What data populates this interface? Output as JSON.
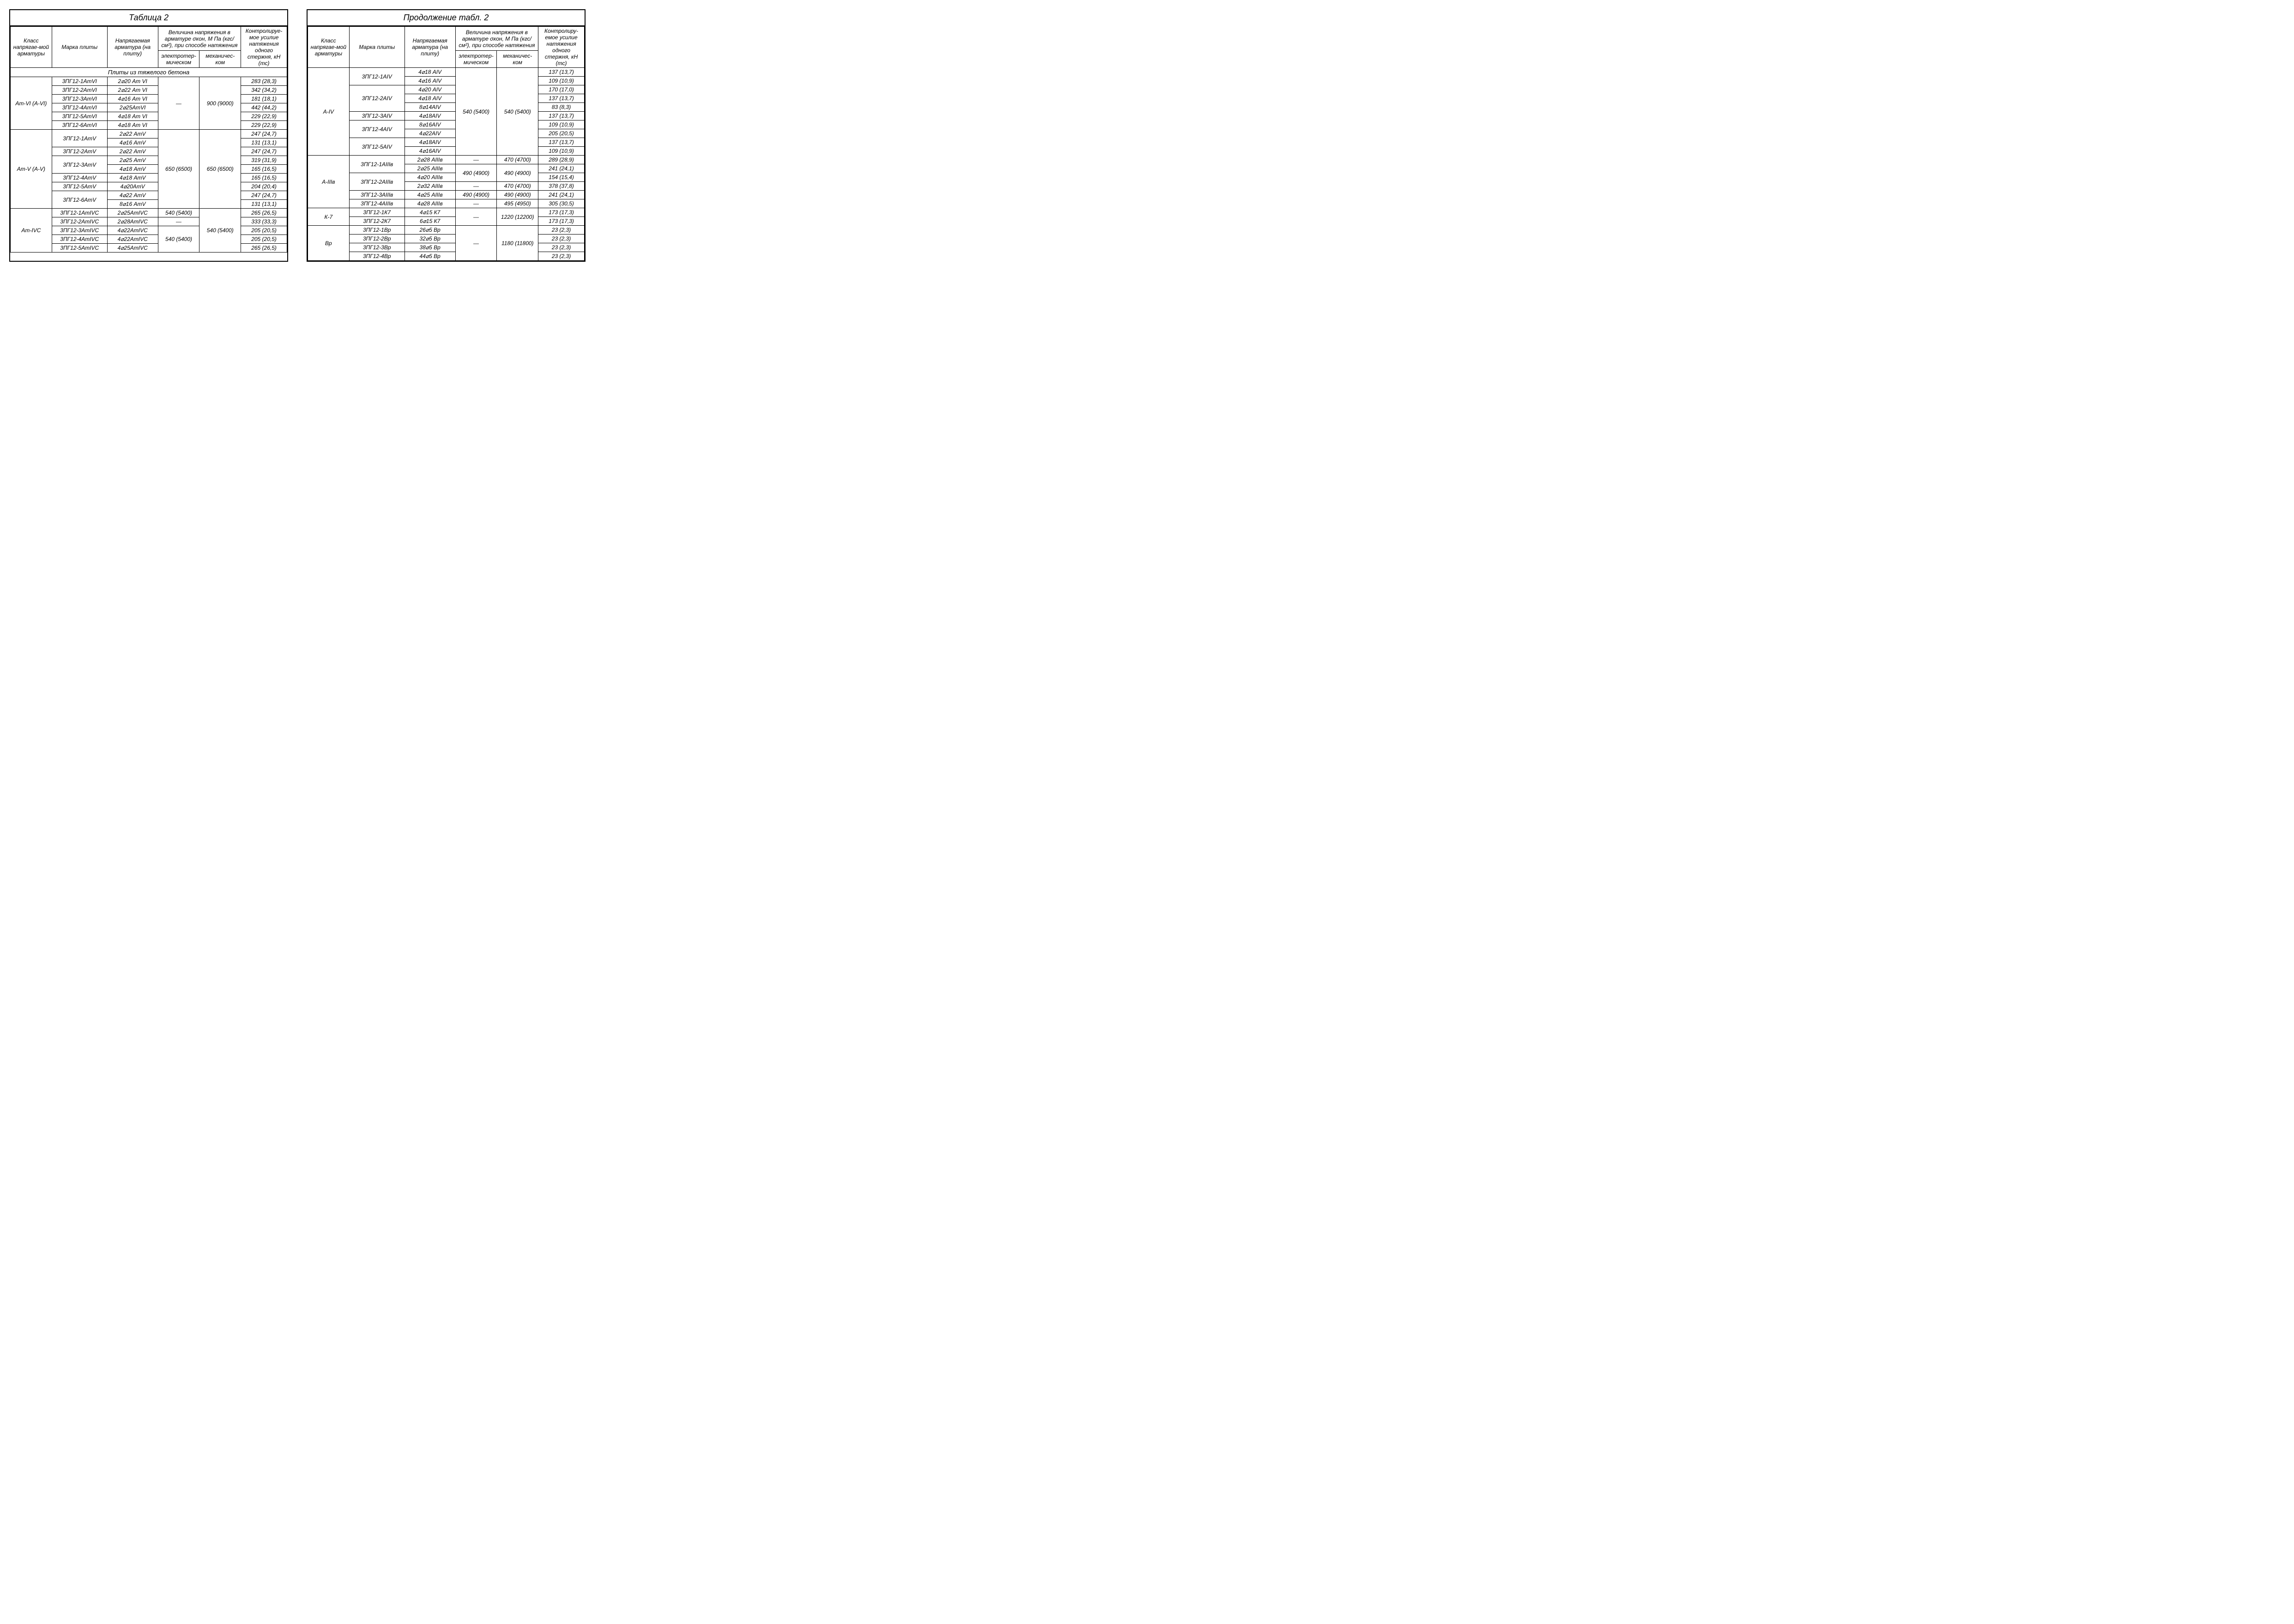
{
  "left": {
    "title": "Таблица 2",
    "head": {
      "a": "Класс напрягае-мой арматуры",
      "b": "Марка плиты",
      "c": "Напрягаемая арматура (на плиту)",
      "d_top": "Величина напряжения в арматуре σкон, М Па (кгс/см²), при способе натяжения",
      "d1": "электротер-мическом",
      "d2": "механичес-ком",
      "e": "Контролируе-мое усилие натяжения одного стержня, кН (тс)"
    },
    "section": "Плиты из тяжелого бетона",
    "groups": [
      {
        "cls": "Ат-VI (А-VI)",
        "d1": "—",
        "d2": "900 (9000)",
        "rows": [
          {
            "b": "3ПГ12-1АтVI",
            "c": "2⌀20 Ат VI",
            "e": "283 (28,3)"
          },
          {
            "b": "3ПГ12-2АтVI",
            "c": "2⌀22 Ат VI",
            "e": "342 (34,2)"
          },
          {
            "b": "3ПГ12-3АтVI",
            "c": "4⌀16 Ат VI",
            "e": "181 (18,1)"
          },
          {
            "b": "3ПГ12-4АтVI",
            "c": "2⌀25АтVI",
            "e": "442 (44,2)"
          },
          {
            "b": "3ПГ12-5АтVI",
            "c": "4⌀18 Ат VI",
            "e": "229 (22,9)"
          },
          {
            "b": "3ПГ12-6АтVI",
            "c": "4⌀18 Ат VI",
            "e": "229 (22,9)"
          }
        ]
      },
      {
        "cls": "Ат-V (А-V)",
        "d1": "650 (6500)",
        "d2": "650 (6500)",
        "rows": [
          {
            "b": "3ПГ12-1АтV",
            "c": "2⌀22 АтV",
            "e": "247 (24,7)",
            "span": 2
          },
          {
            "b": "",
            "c": "4⌀16 АтV",
            "e": "131 (13,1)"
          },
          {
            "b": "3ПГ12-2АтV",
            "c": "2⌀22 АтV",
            "e": "247 (24,7)"
          },
          {
            "b": "3ПГ12-3АтV",
            "c": "2⌀25 АтV",
            "e": "319 (31,9)",
            "span": 2
          },
          {
            "b": "",
            "c": "4⌀18 АтV",
            "e": "165 (16,5)"
          },
          {
            "b": "3ПГ12-4АтV",
            "c": "4⌀18 АтV",
            "e": "165 (16,5)"
          },
          {
            "b": "3ПГ12-5АтV",
            "c": "4⌀20АтV",
            "e": "204 (20,4)"
          },
          {
            "b": "3ПГ12-6АтV",
            "c": "4⌀22 АтV",
            "e": "247 (24,7)",
            "span": 2
          },
          {
            "b": "",
            "c": "8⌀16 АтV",
            "e": "131 (13,1)"
          }
        ]
      },
      {
        "cls": "Ат-IVС",
        "d2": "540 (5400)",
        "rows": [
          {
            "b": "3ПГ12-1АтIVС",
            "c": "2⌀25АтIVС",
            "d1": "540 (5400)",
            "e": "265 (26,5)"
          },
          {
            "b": "3ПГ12-2АтIVС",
            "c": "2⌀28АтIVС",
            "d1": "—",
            "e": "333 (33,3)"
          },
          {
            "b": "3ПГ12-3АтIVС",
            "c": "4⌀22АтIVС",
            "d1": "540 (5400)",
            "d1span": 3,
            "e": "205 (20,5)"
          },
          {
            "b": "3ПГ12-4АтIVС",
            "c": "4⌀22АтIVС",
            "e": "205 (20,5)"
          },
          {
            "b": "3ПГ12-5АтIVС",
            "c": "4⌀25АтIVС",
            "e": "265 (26,5)"
          }
        ]
      }
    ]
  },
  "right": {
    "title": "Продолжение табл. 2",
    "head": {
      "a": "Класс напрягае-мой арматуры",
      "b": "Марка плиты",
      "c": "Напрягаемая арматура (на плиту)",
      "d_top": "Величина напряжения в арматуре σкон, М Па (кгс/см²), при способе натяжения",
      "d1": "электротер-мическом",
      "d2": "механичес-ком",
      "e": "Контролиру-емое усилие натяжения одного стержня, кН (тс)"
    },
    "groups": [
      {
        "cls": "А-IV",
        "d1": "540 (5400)",
        "d2": "540 (5400)",
        "rows": [
          {
            "b": "3ПГ12-1АIV",
            "c": "4⌀18 АIV",
            "e": "137 (13,7)",
            "span": 2
          },
          {
            "b": "",
            "c": "4⌀16 АIV",
            "e": "109 (10,9)"
          },
          {
            "b": "3ПГ12-2АIV",
            "c": "4⌀20 АIV",
            "e": "170 (17,0)",
            "span": 3
          },
          {
            "b": "",
            "c": "4⌀18 АIV",
            "e": "137 (13,7)"
          },
          {
            "b": "",
            "c": "8⌀14АIV",
            "e": "83 (8,3)"
          },
          {
            "b": "3ПГ12-3АIV",
            "c": "4⌀18АIV",
            "e": "137 (13,7)"
          },
          {
            "b": "3ПГ12-4АIV",
            "c": "8⌀16АIV",
            "e": "109 (10,9)",
            "span": 2
          },
          {
            "b": "",
            "c": "4⌀22АIV",
            "e": "205 (20,5)"
          },
          {
            "b": "3ПГ12-5АIV",
            "c": "4⌀18АIV",
            "e": "137 (13,7)",
            "span": 2
          },
          {
            "b": "",
            "c": "4⌀16АIV",
            "e": "109 (10,9)"
          }
        ]
      },
      {
        "cls": "А-IIIв",
        "rows": [
          {
            "b": "3ПГ12-1АIIIв",
            "c": "2⌀28 АIIIв",
            "d1": "—",
            "d2": "470 (4700)",
            "e": "289 (28,9)",
            "span": 2
          },
          {
            "b": "",
            "c": "2⌀25 АIIIв",
            "d1": "490 (4900)",
            "d1span": 2,
            "d2": "490 (4900)",
            "d2span": 2,
            "e": "241 (24,1)"
          },
          {
            "b": "3ПГ12-2АIIIв",
            "c": "4⌀20 АIIIв",
            "e": "154 (15,4)",
            "span": 2
          },
          {
            "b": "",
            "c": "2⌀32 АIIIв",
            "d1": "—",
            "d2": "470 (4700)",
            "e": "378 (37,8)"
          },
          {
            "b": "3ПГ12-3АIIIв",
            "c": "4⌀25 АIIIв",
            "d1": "490 (4900)",
            "d2": "490 (4900)",
            "e": "241 (24,1)"
          },
          {
            "b": "3ПГ12-4АIIIв",
            "c": "4⌀28 АIIIв",
            "d1": "—",
            "d2": "495 (4950)",
            "e": "305 (30,5)"
          }
        ]
      },
      {
        "cls": "К-7",
        "d1": "—",
        "d2": "1220 (12200)",
        "rows": [
          {
            "b": "3ПГ12-1К7",
            "c": "4⌀15 К7",
            "e": "173 (17,3)"
          },
          {
            "b": "3ПГ12-2К7",
            "c": "6⌀15 К7",
            "e": "173 (17,3)"
          }
        ]
      },
      {
        "cls": "Вр",
        "d1": "—",
        "d2": "1180 (11800)",
        "rows": [
          {
            "b": "3ПГ12-1Вр",
            "c": "26⌀5 Вр",
            "e": "23 (2,3)"
          },
          {
            "b": "3ПГ12-2Вр",
            "c": "32⌀5 Вр",
            "e": "23 (2,3)"
          },
          {
            "b": "3ПГ12-3Вр",
            "c": "38⌀5 Вр",
            "e": "23 (2,3)"
          },
          {
            "b": "3ПГ12-4Вр",
            "c": "44⌀5 Вр",
            "e": "23 (2,3)"
          }
        ]
      }
    ]
  }
}
